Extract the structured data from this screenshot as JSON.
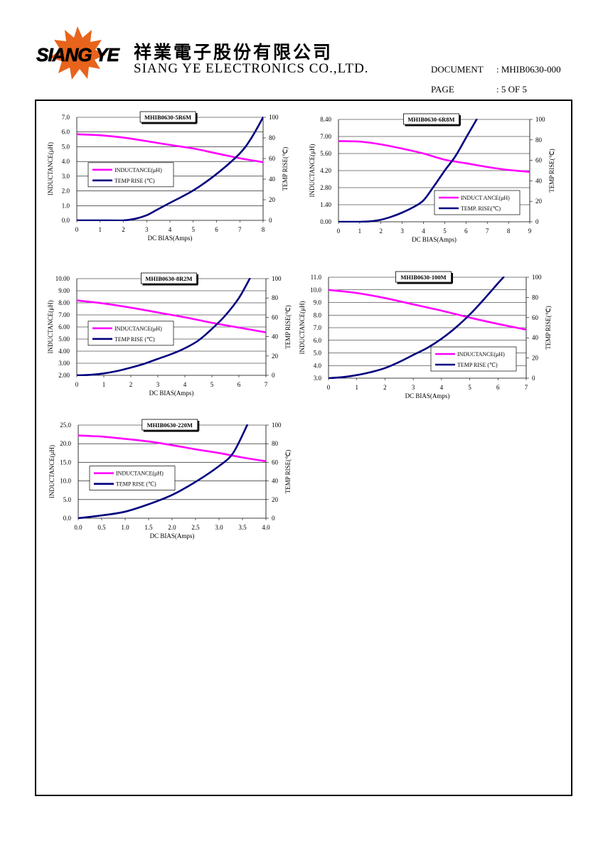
{
  "header": {
    "logo_text": "SIANG YE",
    "company_cn": "祥業電子股份有限公司",
    "company_en": "SIANG YE ELECTRONICS CO.,LTD.",
    "document_label": "DOCUMENT",
    "document_value": ": MHIB0630-000",
    "page_label": "PAGE",
    "page_value": ": 5 OF 5"
  },
  "colors": {
    "inductance": "#ff00ff",
    "temp": "#000080",
    "grid": "#000000",
    "frame": "#000000"
  },
  "chart_data": [
    {
      "type": "line",
      "title": "MHIB0630-5R6M",
      "xlabel": "DC BIAS(Amps)",
      "ylabel": "INDUCTANCE(μH)",
      "y2label": "TEMP RISE(℃)",
      "xlim": [
        0,
        8
      ],
      "ylim": [
        0,
        7
      ],
      "y2lim": [
        0,
        100
      ],
      "x_ticks": [
        "0",
        "1",
        "2",
        "3",
        "4",
        "5",
        "6",
        "7",
        "8"
      ],
      "y_ticks": [
        "0.0",
        "1.0",
        "2.0",
        "3.0",
        "4.0",
        "5.0",
        "6.0",
        "7.0"
      ],
      "y2_ticks": [
        "0",
        "20",
        "40",
        "60",
        "80",
        "100"
      ],
      "legend_position": "left-middle",
      "series": [
        {
          "name": "INDUCTANCE(μH)",
          "axis": "left",
          "points": [
            [
              0,
              5.85
            ],
            [
              1,
              5.78
            ],
            [
              2,
              5.62
            ],
            [
              3,
              5.38
            ],
            [
              4,
              5.12
            ],
            [
              5,
              4.88
            ],
            [
              6,
              4.55
            ],
            [
              7,
              4.22
            ],
            [
              8,
              3.95
            ]
          ]
        },
        {
          "name": "TEMP RISE (℃)",
          "axis": "right",
          "points": [
            [
              0,
              0
            ],
            [
              1,
              0
            ],
            [
              2,
              0
            ],
            [
              2.5,
              1.5
            ],
            [
              3,
              5
            ],
            [
              3.5,
              11
            ],
            [
              4,
              17
            ],
            [
              5,
              29
            ],
            [
              6,
              45
            ],
            [
              7,
              65
            ],
            [
              7.5,
              80
            ],
            [
              8,
              100
            ]
          ]
        }
      ]
    },
    {
      "type": "line",
      "title": "MHIB0630-6R8M",
      "xlabel": "DC BIAS(Amps)",
      "ylabel": "INDUCTANCE(μH)",
      "y2label": "TEMP RISE(℃)",
      "xlim": [
        0,
        9
      ],
      "ylim": [
        0,
        8.4
      ],
      "y2lim": [
        0,
        100
      ],
      "x_ticks": [
        "0",
        "1",
        "2",
        "3",
        "4",
        "5",
        "6",
        "7",
        "8",
        "9"
      ],
      "y_ticks": [
        "0.00",
        "1.40",
        "2.80",
        "4.20",
        "5.60",
        "7.00",
        "8.40"
      ],
      "y2_ticks": [
        "0",
        "20",
        "40",
        "60",
        "80",
        "100"
      ],
      "legend_position": "bottom-right",
      "series": [
        {
          "name": "INDUCT ANCE(μH)",
          "axis": "left",
          "points": [
            [
              0,
              6.62
            ],
            [
              1,
              6.58
            ],
            [
              2,
              6.35
            ],
            [
              3,
              6.0
            ],
            [
              4,
              5.6
            ],
            [
              5,
              5.1
            ],
            [
              6,
              4.8
            ],
            [
              7,
              4.5
            ],
            [
              8,
              4.25
            ],
            [
              9,
              4.1
            ]
          ]
        },
        {
          "name": "TEMP. RISE(℃)",
          "axis": "right",
          "points": [
            [
              0,
              0
            ],
            [
              1,
              0
            ],
            [
              1.5,
              0.5
            ],
            [
              2,
              2
            ],
            [
              2.5,
              5
            ],
            [
              3,
              9
            ],
            [
              3.5,
              14
            ],
            [
              4,
              21
            ],
            [
              4.5,
              35
            ],
            [
              5,
              50
            ],
            [
              5.5,
              64
            ],
            [
              6,
              82
            ],
            [
              6.5,
              100
            ]
          ]
        }
      ]
    },
    {
      "type": "line",
      "title": "MHIB0630-8R2M",
      "xlabel": "DC BIAS(Amps)",
      "ylabel": "INDUCTANCE(μH)",
      "y2label": "TEMP RISE(℃)",
      "xlim": [
        0,
        7
      ],
      "ylim": [
        2,
        10
      ],
      "y2lim": [
        0,
        100
      ],
      "x_ticks": [
        "0",
        "1",
        "2",
        "3",
        "4",
        "5",
        "6",
        "7"
      ],
      "y_ticks": [
        "2.00",
        "3.00",
        "4.00",
        "5.00",
        "6.00",
        "7.00",
        "8.00",
        "9.00",
        "10.00"
      ],
      "y2_ticks": [
        "0",
        "20",
        "40",
        "60",
        "80",
        "100"
      ],
      "legend_position": "left-middle",
      "series": [
        {
          "name": "INDUCTANCE(μH)",
          "axis": "left",
          "points": [
            [
              0,
              8.2
            ],
            [
              1,
              7.95
            ],
            [
              2,
              7.6
            ],
            [
              3,
              7.2
            ],
            [
              4,
              6.8
            ],
            [
              5,
              6.35
            ],
            [
              6,
              5.95
            ],
            [
              7,
              5.55
            ]
          ]
        },
        {
          "name": "TEMP RISE (℃)",
          "axis": "right",
          "points": [
            [
              0,
              0
            ],
            [
              0.5,
              0.5
            ],
            [
              1,
              2
            ],
            [
              1.5,
              4.5
            ],
            [
              2,
              8
            ],
            [
              2.5,
              12
            ],
            [
              3,
              17
            ],
            [
              3.5,
              22
            ],
            [
              4,
              28
            ],
            [
              4.5,
              36
            ],
            [
              5,
              48
            ],
            [
              5.5,
              62
            ],
            [
              6,
              80
            ],
            [
              6.4,
              100
            ]
          ]
        }
      ]
    },
    {
      "type": "line",
      "title": "MHIB0630-100M",
      "xlabel": "DC BIAS(Amps)",
      "ylabel": "INDUCTANCE(μH)",
      "y2label": "TEMP RISE(℃)",
      "xlim": [
        0,
        7
      ],
      "ylim": [
        3,
        11
      ],
      "y2lim": [
        0,
        100
      ],
      "x_ticks": [
        "0",
        "1",
        "2",
        "3",
        "4",
        "5",
        "6",
        "7"
      ],
      "y_ticks": [
        "3.0",
        "4.0",
        "5.0",
        "6.0",
        "7.0",
        "8.0",
        "9.0",
        "10.0",
        "11.0"
      ],
      "y2_ticks": [
        "0",
        "20",
        "40",
        "60",
        "80",
        "100"
      ],
      "legend_position": "bottom-right",
      "series": [
        {
          "name": "INDUCTANCE(μH)",
          "axis": "left",
          "points": [
            [
              0,
              10.0
            ],
            [
              1,
              9.75
            ],
            [
              2,
              9.35
            ],
            [
              3,
              8.85
            ],
            [
              4,
              8.35
            ],
            [
              5,
              7.8
            ],
            [
              6,
              7.3
            ],
            [
              7,
              6.85
            ]
          ]
        },
        {
          "name": "TEMP RISE (℃)",
          "axis": "right",
          "points": [
            [
              0,
              0
            ],
            [
              0.5,
              1
            ],
            [
              1,
              3
            ],
            [
              1.5,
              6
            ],
            [
              2,
              10
            ],
            [
              2.5,
              16
            ],
            [
              3,
              23
            ],
            [
              3.5,
              30
            ],
            [
              4,
              39
            ],
            [
              4.5,
              50
            ],
            [
              5,
              63
            ],
            [
              5.5,
              78
            ],
            [
              6,
              94
            ],
            [
              6.2,
              100
            ]
          ]
        }
      ]
    },
    {
      "type": "line",
      "title": "MHIB0630-220M",
      "xlabel": "DC BIAS(Amps)",
      "ylabel": "INDUCTANCE(μH)",
      "y2label": "TEMP RISE(℃)",
      "xlim": [
        0,
        4
      ],
      "ylim": [
        0,
        25
      ],
      "y2lim": [
        0,
        100
      ],
      "x_ticks": [
        "0.0",
        "0.5",
        "1.0",
        "1.5",
        "2.0",
        "2.5",
        "3.0",
        "3.5",
        "4.0"
      ],
      "y_ticks": [
        "0.0",
        "5.0",
        "10.0",
        "15.0",
        "20.0",
        "25.0"
      ],
      "y2_ticks": [
        "0",
        "20",
        "40",
        "60",
        "80",
        "100"
      ],
      "legend_position": "left-middle",
      "series": [
        {
          "name": "INDUCTANCE(μH)",
          "axis": "left",
          "points": [
            [
              0,
              22.2
            ],
            [
              0.5,
              21.9
            ],
            [
              1,
              21.3
            ],
            [
              1.5,
              20.6
            ],
            [
              2,
              19.6
            ],
            [
              2.5,
              18.5
            ],
            [
              3,
              17.5
            ],
            [
              3.5,
              16.3
            ],
            [
              4,
              15.3
            ]
          ]
        },
        {
          "name": "TEMP RISE (℃)",
          "axis": "right",
          "points": [
            [
              0,
              0
            ],
            [
              0.5,
              3
            ],
            [
              1,
              7
            ],
            [
              1.5,
              15
            ],
            [
              2,
              25
            ],
            [
              2.5,
              39
            ],
            [
              3,
              56
            ],
            [
              3.3,
              70
            ],
            [
              3.6,
              100
            ]
          ]
        }
      ]
    }
  ]
}
